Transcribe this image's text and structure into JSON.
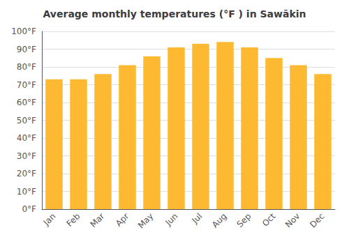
{
  "chart_data": {
    "type": "bar",
    "title": "Average monthly temperatures (°F ) in Sawākin",
    "categories": [
      "Jan",
      "Feb",
      "Mar",
      "Apr",
      "May",
      "Jun",
      "Jul",
      "Aug",
      "Sep",
      "Oct",
      "Nov",
      "Dec"
    ],
    "values": [
      73,
      73,
      76,
      81,
      86,
      91,
      93,
      94,
      91,
      85,
      81,
      76
    ],
    "color": "#FDB931",
    "ylim": [
      0,
      100
    ],
    "yticks": [
      {
        "value": 0,
        "label": "0°F"
      },
      {
        "value": 10,
        "label": "10°F"
      },
      {
        "value": 20,
        "label": "20°F"
      },
      {
        "value": 30,
        "label": "30°F"
      },
      {
        "value": 40,
        "label": "40°F"
      },
      {
        "value": 50,
        "label": "50°F"
      },
      {
        "value": 60,
        "label": "60°F"
      },
      {
        "value": 70,
        "label": "70°F"
      },
      {
        "value": 80,
        "label": "80°F"
      },
      {
        "value": 90,
        "label": "90°F"
      },
      {
        "value": 100,
        "label": "100°F"
      }
    ],
    "grid": true
  }
}
